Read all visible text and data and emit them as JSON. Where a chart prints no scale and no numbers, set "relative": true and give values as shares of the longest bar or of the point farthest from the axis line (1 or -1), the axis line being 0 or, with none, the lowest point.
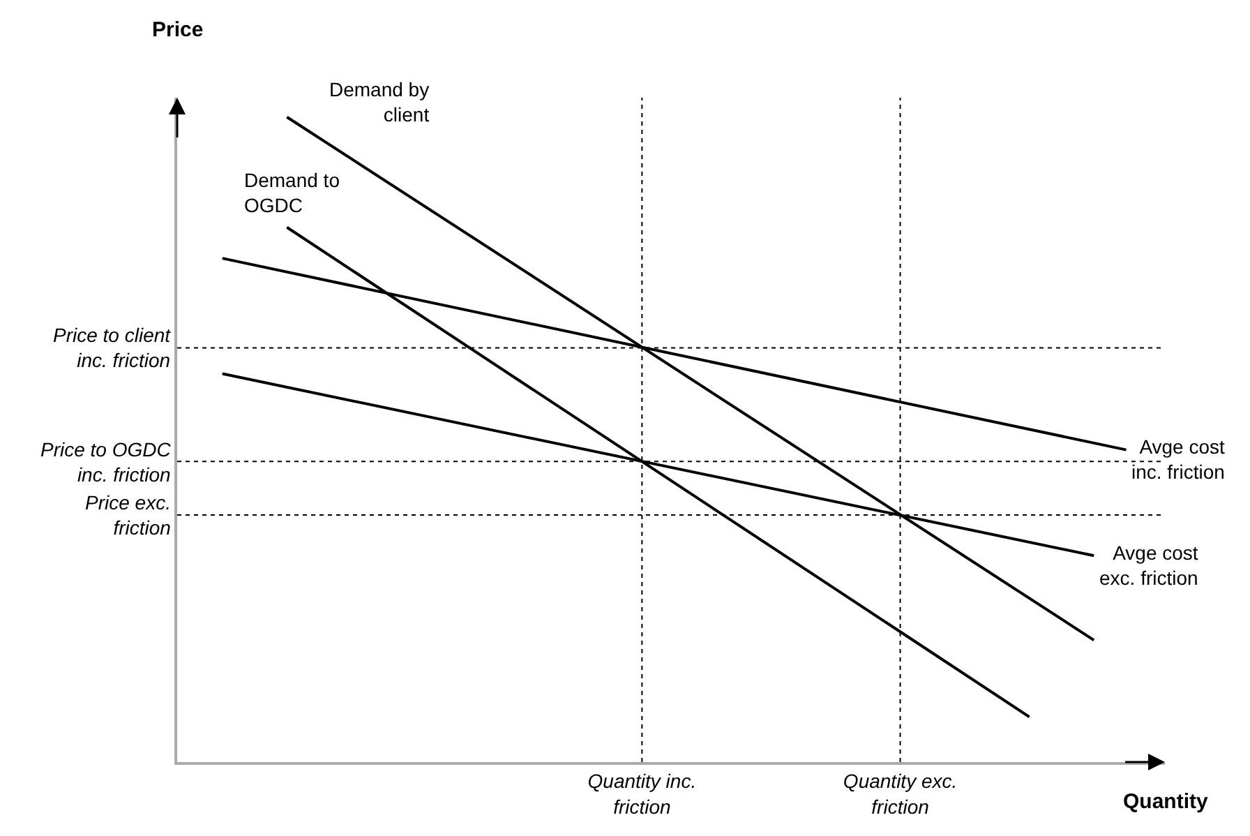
{
  "chart_data": {
    "type": "line",
    "relative": true,
    "xlabel": "Quantity",
    "ylabel": "Price",
    "categories": [
      null,
      null,
      null,
      null,
      null,
      null,
      null,
      null,
      null,
      null,
      null,
      null,
      null,
      null,
      "Quantity inc. friction",
      null,
      null,
      null,
      null,
      null,
      null,
      null,
      "Quantity exc. friction",
      null,
      null,
      null,
      null,
      null,
      null,
      null
    ],
    "series": [
      {
        "name": "Demand by client",
        "color": "#000000",
        "values": [
          null,
          null,
          null,
          1,
          null,
          null,
          null,
          null,
          null,
          null,
          null,
          null,
          null,
          null,
          null,
          null,
          null,
          null,
          null,
          null,
          null,
          null,
          null,
          null,
          null,
          null,
          null,
          null,
          0.189,
          null
        ]
      },
      {
        "name": "Demand to OGDC",
        "color": "#000000",
        "values": [
          null,
          null,
          null,
          0.829,
          null,
          null,
          null,
          null,
          null,
          null,
          null,
          null,
          null,
          null,
          null,
          null,
          null,
          null,
          null,
          null,
          null,
          null,
          null,
          null,
          null,
          null,
          0.07,
          null,
          null,
          null
        ]
      },
      {
        "name": "Avge cost inc. friction",
        "color": "#000000",
        "values": [
          null,
          0.781,
          null,
          null,
          null,
          null,
          null,
          null,
          null,
          null,
          null,
          null,
          null,
          null,
          null,
          null,
          null,
          null,
          null,
          null,
          null,
          null,
          null,
          null,
          null,
          null,
          null,
          null,
          null,
          0.484
        ]
      },
      {
        "name": "Avge cost exc. friction",
        "color": "#000000",
        "values": [
          null,
          0.602,
          null,
          null,
          null,
          null,
          null,
          null,
          null,
          null,
          null,
          null,
          null,
          null,
          null,
          null,
          null,
          null,
          null,
          null,
          null,
          null,
          null,
          null,
          null,
          null,
          null,
          null,
          0.32,
          null
        ]
      }
    ],
    "ref_lines": [
      {
        "axis": "y",
        "value": 0.642,
        "label": "Price to client inc. friction",
        "line_style": "dotted"
      },
      {
        "axis": "y",
        "value": 0.466,
        "label": "Price to OGDC inc. friction",
        "line_style": "dotted"
      },
      {
        "axis": "y",
        "value": 0.383,
        "label": "Price exc. friction",
        "line_style": "dotted"
      },
      {
        "axis": "x",
        "value": "Quantity inc. friction",
        "line_style": "dotted"
      },
      {
        "axis": "x",
        "value": "Quantity exc. friction",
        "line_style": "dotted"
      }
    ],
    "legend": false,
    "grid": false,
    "marker": "none",
    "line_style": "solid"
  }
}
